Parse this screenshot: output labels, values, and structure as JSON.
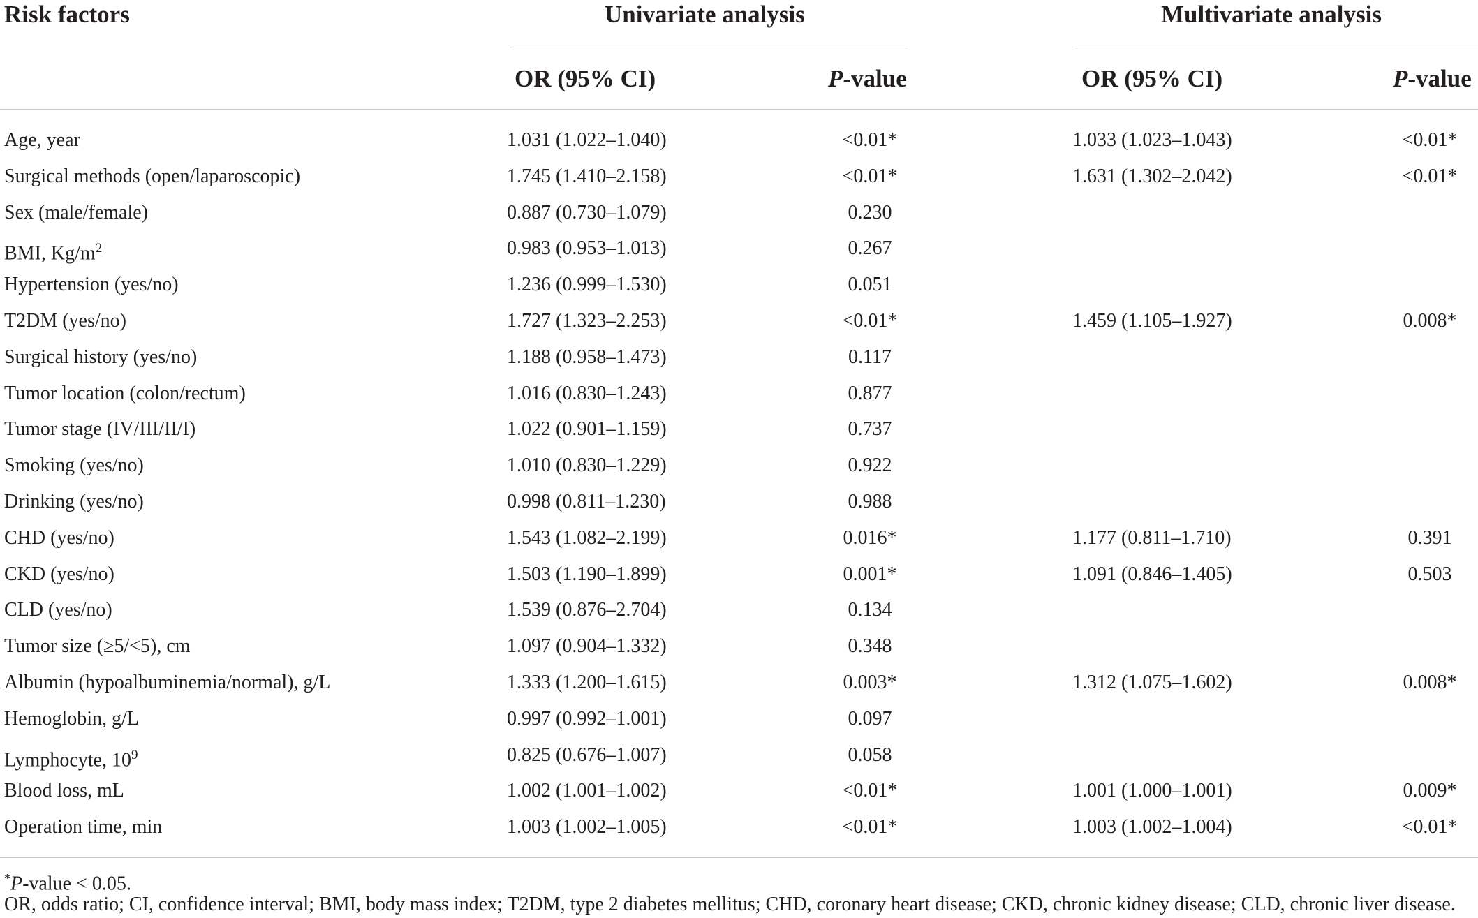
{
  "table": {
    "header": {
      "risk_factors": "Risk factors",
      "univariate": "Univariate analysis",
      "multivariate": "Multivariate analysis",
      "or_ci": "OR (95% CI)",
      "p_italic": "P",
      "p_rest": "-value"
    },
    "rows": [
      {
        "factor": "Age, year",
        "sup": "",
        "or_uni": "1.031 (1.022–1.040)",
        "p_uni": "<0.01*",
        "or_multi": "1.033 (1.023–1.043)",
        "p_multi": "<0.01*"
      },
      {
        "factor": "Surgical methods (open/laparoscopic)",
        "sup": "",
        "or_uni": "1.745 (1.410–2.158)",
        "p_uni": "<0.01*",
        "or_multi": "1.631 (1.302–2.042)",
        "p_multi": "<0.01*"
      },
      {
        "factor": "Sex (male/female)",
        "sup": "",
        "or_uni": "0.887 (0.730–1.079)",
        "p_uni": "0.230",
        "or_multi": "",
        "p_multi": ""
      },
      {
        "factor": "BMI, Kg/m",
        "sup": "2",
        "or_uni": "0.983 (0.953–1.013)",
        "p_uni": "0.267",
        "or_multi": "",
        "p_multi": ""
      },
      {
        "factor": "Hypertension (yes/no)",
        "sup": "",
        "or_uni": "1.236 (0.999–1.530)",
        "p_uni": "0.051",
        "or_multi": "",
        "p_multi": ""
      },
      {
        "factor": "T2DM (yes/no)",
        "sup": "",
        "or_uni": "1.727 (1.323–2.253)",
        "p_uni": "<0.01*",
        "or_multi": "1.459 (1.105–1.927)",
        "p_multi": "0.008*"
      },
      {
        "factor": "Surgical history (yes/no)",
        "sup": "",
        "or_uni": "1.188 (0.958–1.473)",
        "p_uni": "0.117",
        "or_multi": "",
        "p_multi": ""
      },
      {
        "factor": "Tumor location (colon/rectum)",
        "sup": "",
        "or_uni": "1.016 (0.830–1.243)",
        "p_uni": "0.877",
        "or_multi": "",
        "p_multi": ""
      },
      {
        "factor": "Tumor stage (IV/III/II/I)",
        "sup": "",
        "or_uni": "1.022 (0.901–1.159)",
        "p_uni": "0.737",
        "or_multi": "",
        "p_multi": ""
      },
      {
        "factor": "Smoking (yes/no)",
        "sup": "",
        "or_uni": "1.010 (0.830–1.229)",
        "p_uni": "0.922",
        "or_multi": "",
        "p_multi": ""
      },
      {
        "factor": "Drinking (yes/no)",
        "sup": "",
        "or_uni": "0.998 (0.811–1.230)",
        "p_uni": "0.988",
        "or_multi": "",
        "p_multi": ""
      },
      {
        "factor": "CHD (yes/no)",
        "sup": "",
        "or_uni": "1.543 (1.082–2.199)",
        "p_uni": "0.016*",
        "or_multi": "1.177 (0.811–1.710)",
        "p_multi": "0.391"
      },
      {
        "factor": "CKD (yes/no)",
        "sup": "",
        "or_uni": "1.503 (1.190–1.899)",
        "p_uni": "0.001*",
        "or_multi": "1.091 (0.846–1.405)",
        "p_multi": "0.503"
      },
      {
        "factor": "CLD (yes/no)",
        "sup": "",
        "or_uni": "1.539 (0.876–2.704)",
        "p_uni": "0.134",
        "or_multi": "",
        "p_multi": ""
      },
      {
        "factor": "Tumor size (≥5/<5), cm",
        "sup": "",
        "or_uni": "1.097 (0.904–1.332)",
        "p_uni": "0.348",
        "or_multi": "",
        "p_multi": ""
      },
      {
        "factor": "Albumin (hypoalbuminemia/normal), g/L",
        "sup": "",
        "or_uni": "1.333 (1.200–1.615)",
        "p_uni": "0.003*",
        "or_multi": "1.312 (1.075–1.602)",
        "p_multi": "0.008*"
      },
      {
        "factor": "Hemoglobin, g/L",
        "sup": "",
        "or_uni": "0.997 (0.992–1.001)",
        "p_uni": "0.097",
        "or_multi": "",
        "p_multi": ""
      },
      {
        "factor": "Lymphocyte, 10",
        "sup": "9",
        "or_uni": "0.825 (0.676–1.007)",
        "p_uni": "0.058",
        "or_multi": "",
        "p_multi": ""
      },
      {
        "factor": "Blood loss, mL",
        "sup": "",
        "or_uni": "1.002 (1.001–1.002)",
        "p_uni": "<0.01*",
        "or_multi": "1.001 (1.000–1.001)",
        "p_multi": "0.009*"
      },
      {
        "factor": "Operation time, min",
        "sup": "",
        "or_uni": "1.003 (1.002–1.005)",
        "p_uni": "<0.01*",
        "or_multi": "1.003 (1.002–1.004)",
        "p_multi": "<0.01*"
      }
    ],
    "footnotes": {
      "significance_star": "*",
      "significance_p": "P",
      "significance_rest": "-value < 0.05.",
      "abbreviations": "OR, odds ratio; CI, confidence interval; BMI, body mass index; T2DM, type 2 diabetes mellitus; CHD, coronary heart disease; CKD, chronic kidney disease; CLD, chronic liver disease."
    }
  }
}
